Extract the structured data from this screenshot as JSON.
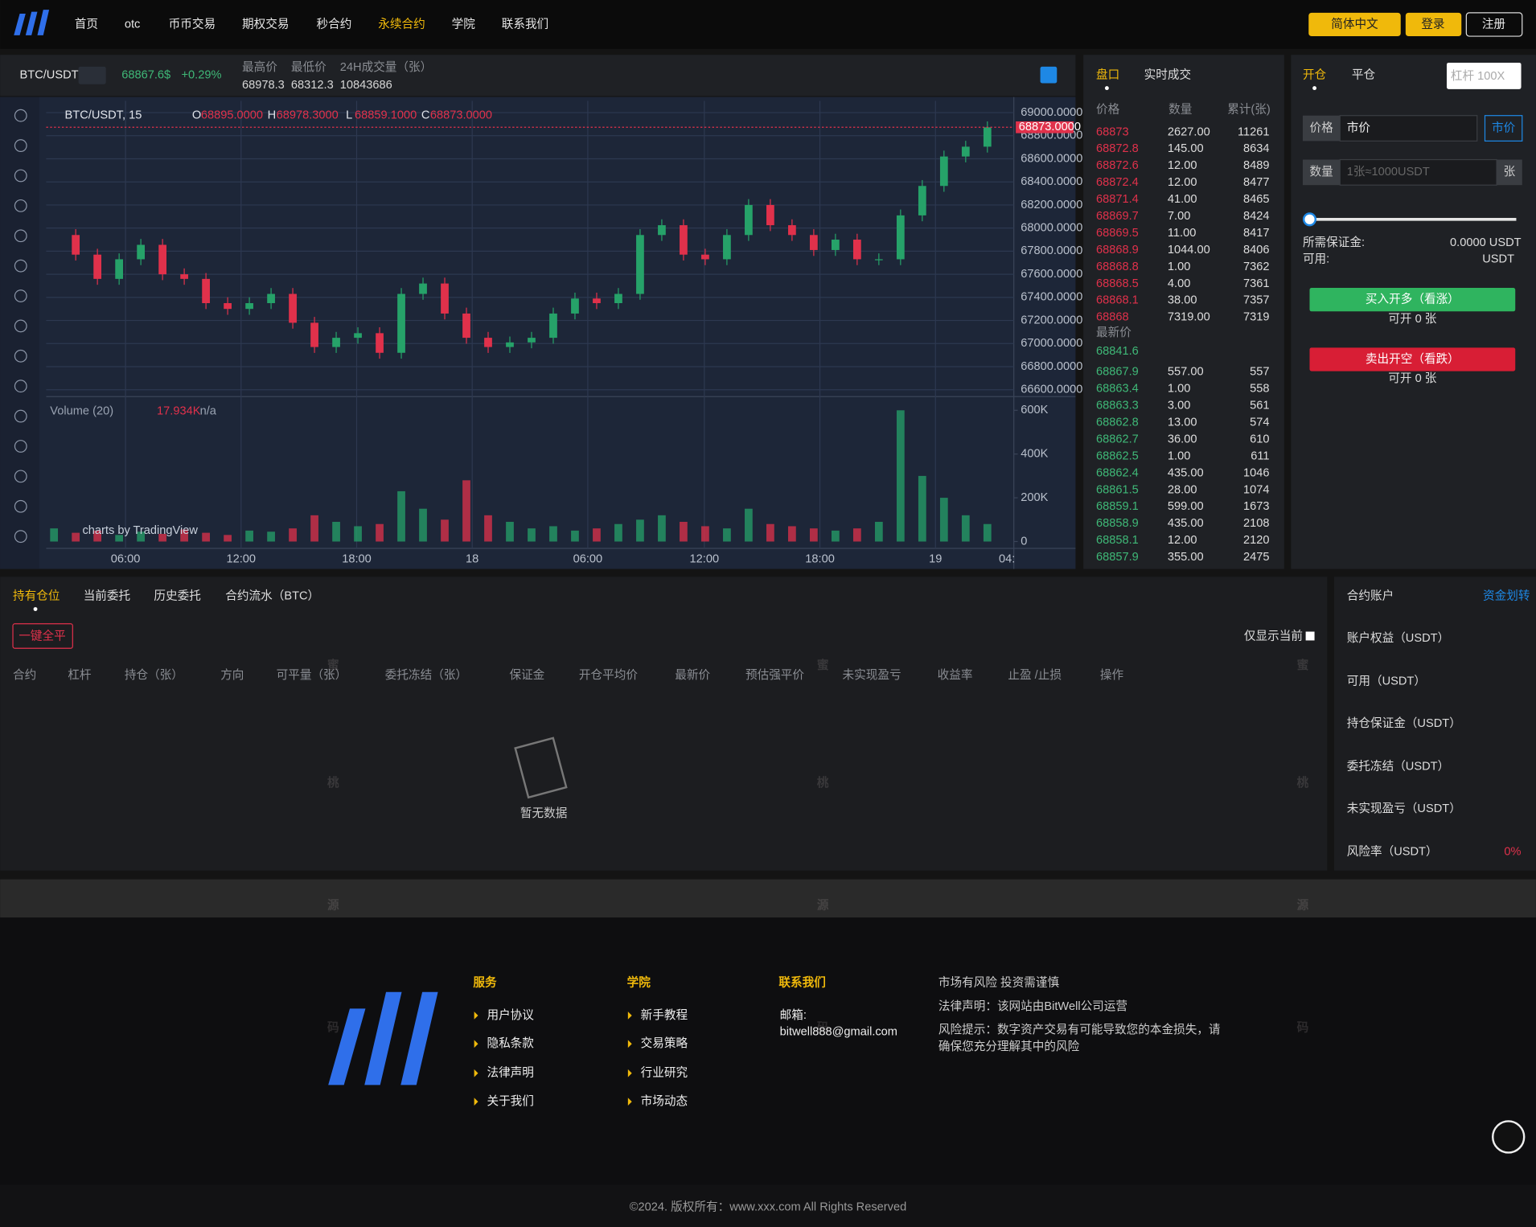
{
  "nav": {
    "items": [
      "首页",
      "otc",
      "币币交易",
      "期权交易",
      "秒合约",
      "永续合约",
      "学院",
      "联系我们"
    ],
    "active": 5,
    "language": "简体中文",
    "login": "登录",
    "register": "注册"
  },
  "ticker": {
    "pair": "BTC/USDT",
    "price": "68867.6$",
    "change": "+0.29%",
    "high_label": "最高价",
    "high": 68978.3,
    "low_label": "最低价",
    "low": 68312.3,
    "volume_label": "24H成交量（张）",
    "volume": 10843686
  },
  "chart_data": {
    "type": "candlestick",
    "legend": "BTC/USDT, 15",
    "ohlc_labels": [
      "O",
      "H",
      "L",
      "C"
    ],
    "ohlc": [
      {
        "value": 68895,
        "label": "68895.0000"
      },
      {
        "value": 68978.3,
        "label": "68978.3000"
      },
      {
        "value": 68859.1,
        "label": "68859.1000"
      },
      {
        "value": 68873,
        "label": "68873.0000"
      }
    ],
    "closes": [
      67940,
      67770,
      67560,
      67730,
      67855,
      67600,
      67560,
      67350,
      67300,
      67350,
      67430,
      67180,
      66970,
      67050,
      67090,
      66920,
      67430,
      67520,
      67260,
      67050,
      66970,
      67010,
      67050,
      67260,
      67390,
      67350,
      67430,
      67940,
      68025,
      67770,
      67730,
      67940,
      68200,
      68025,
      67940,
      67810,
      67900,
      67730,
      67730,
      68110,
      68365,
      68620,
      68705,
      68873
    ],
    "volumes": [
      60000,
      40000,
      50000,
      30000,
      45000,
      35000,
      55000,
      40000,
      30000,
      50000,
      45000,
      60000,
      120000,
      90000,
      70000,
      80000,
      230000,
      150000,
      100000,
      280000,
      120000,
      90000,
      60000,
      70000,
      50000,
      60000,
      80000,
      100000,
      120000,
      90000,
      70000,
      60000,
      150000,
      80000,
      70000,
      60000,
      50000,
      60000,
      90000,
      600000,
      300000,
      200000,
      120000,
      80000
    ],
    "ylim": [
      66600,
      69000
    ],
    "yticks": [
      {
        "value": 66600,
        "label": "66600.0000"
      },
      {
        "value": 66800,
        "label": "66800.0000"
      },
      {
        "value": 67000,
        "label": "67000.0000"
      },
      {
        "value": 67200,
        "label": "67200.0000"
      },
      {
        "value": 67400,
        "label": "67400.0000"
      },
      {
        "value": 67600,
        "label": "67600.0000"
      },
      {
        "value": 67800,
        "label": "67800.0000"
      },
      {
        "value": 68000,
        "label": "68000.0000"
      },
      {
        "value": 68200,
        "label": "68200.0000"
      },
      {
        "value": 68400,
        "label": "68400.0000"
      },
      {
        "value": 68600,
        "label": "68600.0000"
      },
      {
        "value": 68800,
        "label": "68800.0000"
      },
      {
        "value": 69000,
        "label": "69000.0000"
      }
    ],
    "last": {
      "value": 68873,
      "label": "68873.0000"
    },
    "volume_label": "Volume (20)",
    "volume_value": {
      "value": 17934,
      "label": "17.934K"
    },
    "volume_na": "n/a",
    "vlim": [
      0,
      600000
    ],
    "vticks": [
      0,
      {
        "value": 200000,
        "label": "200K"
      },
      {
        "value": 400000,
        "label": "400K"
      },
      {
        "value": 600000,
        "label": "600K"
      }
    ],
    "x_labels": [
      "06:00",
      "12:00",
      "18:00",
      "18",
      "06:00",
      "12:00",
      "18:00",
      "19",
      "04:"
    ],
    "attribution": "charts by TradingView",
    "up_color": "#26a269",
    "down_color": "#e0314b",
    "grid": true
  },
  "orderbook": {
    "tabs": [
      "盘口",
      "实时成交"
    ],
    "headers": [
      "价格",
      "数量",
      "累计(张)"
    ],
    "asks": [
      [
        68873,
        "2627.00",
        11261
      ],
      [
        68872.8,
        "145.00",
        8634
      ],
      [
        68872.6,
        "12.00",
        8489
      ],
      [
        68872.4,
        "12.00",
        8477
      ],
      [
        68871.4,
        "41.00",
        8465
      ],
      [
        68869.7,
        "7.00",
        8424
      ],
      [
        68869.5,
        "11.00",
        8417
      ],
      [
        68868.9,
        "1044.00",
        8406
      ],
      [
        68868.8,
        "1.00",
        7362
      ],
      [
        68868.5,
        "4.00",
        7361
      ],
      [
        68868.1,
        "38.00",
        7357
      ],
      [
        68868,
        "7319.00",
        7319
      ]
    ],
    "latest_label": "最新价",
    "latest": 68841.6,
    "bids": [
      [
        68867.9,
        "557.00",
        557
      ],
      [
        68863.4,
        "1.00",
        558
      ],
      [
        68863.3,
        "3.00",
        561
      ],
      [
        68862.8,
        "13.00",
        574
      ],
      [
        68862.7,
        "36.00",
        610
      ],
      [
        68862.5,
        "1.00",
        611
      ],
      [
        68862.4,
        "435.00",
        1046
      ],
      [
        68861.5,
        "28.00",
        1074
      ],
      [
        68859.1,
        "599.00",
        1673
      ],
      [
        68858.9,
        "435.00",
        2108
      ],
      [
        68858.1,
        "12.00",
        2120
      ],
      [
        68857.9,
        "355.00",
        2475
      ]
    ]
  },
  "order_form": {
    "tabs": [
      "开仓",
      "平仓"
    ],
    "leverage": "杠杆 100X",
    "price_label": "价格",
    "price_input": "市价",
    "market_button": "市价",
    "qty_label": "数量",
    "qty_placeholder": "1张≈1000USDT",
    "qty_unit": "张",
    "margin_label": "所需保证金:",
    "margin_value": "0.0000 USDT",
    "available_label": "可用:",
    "available_value": "USDT",
    "buy": "买入开多（看涨）",
    "buy_note": "可开 0 张",
    "sell": "卖出开空（看跌）",
    "sell_note": "可开 0 张"
  },
  "positions": {
    "tabs": [
      "持有仓位",
      "当前委托",
      "历史委托",
      "合约流水（BTC）"
    ],
    "close_all": "一键全平",
    "only_current": "仅显示当前",
    "headers": [
      "合约",
      "杠杆",
      "持仓（张）",
      "方向",
      "可平量（张）",
      "委托冻结（张）",
      "保证金",
      "开仓平均价",
      "最新价",
      "预估强平价",
      "未实现盈亏",
      "收益率",
      "止盈 /止损",
      "操作"
    ],
    "empty": "暂无数据"
  },
  "account": {
    "title": "合约账户",
    "transfer": "资金划转",
    "rows": [
      "账户权益（USDT）",
      "可用（USDT）",
      "持仓保证金（USDT）",
      "委托冻结（USDT）",
      "未实现盈亏（USDT）",
      "风险率（USDT）"
    ],
    "risk": "0%"
  },
  "footer": {
    "columns": [
      {
        "title": "服务",
        "links": [
          "用户协议",
          "隐私条款",
          "法律声明",
          "关于我们"
        ]
      },
      {
        "title": "学院",
        "links": [
          "新手教程",
          "交易策略",
          "行业研究",
          "市场动态"
        ]
      }
    ],
    "contact_title": "联系我们",
    "email_label": "邮箱:",
    "email": "bitwell888@gmail.com",
    "notes": [
      "市场有风险 投资需谨慎",
      "法律声明：该网站由BitWell公司运营",
      "风险提示：数字资产交易有可能导致您的本金损失，请",
      "确保您充分理解其中的风险"
    ],
    "copyright": "©2024. 版权所有：www.xxx.com All Rights Reserved"
  },
  "watermark": [
    "蜜",
    "桃",
    "源",
    "码"
  ]
}
